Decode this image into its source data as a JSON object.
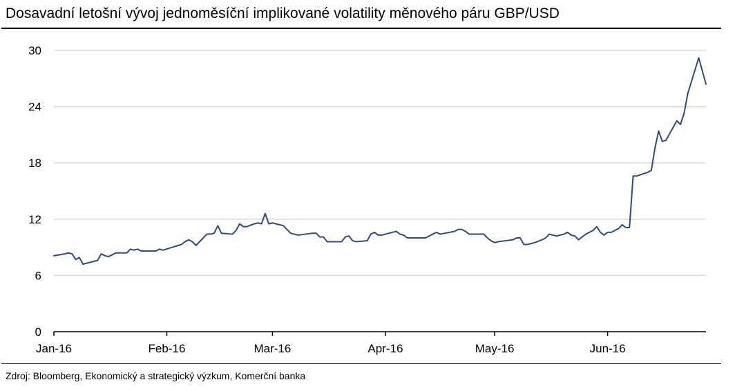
{
  "title": "Dosavadní letošní vývoj jednoměsíční implikované volatility měnového páru GBP/USD",
  "source": "Zdroj: Bloomberg, Ekonomický a strategický výzkum, Komerční banka",
  "colors": {
    "line": "#2e4a7a",
    "grid": "#d9d9d9",
    "axis": "#000000"
  },
  "chart_data": {
    "type": "line",
    "title": "Dosavadní letošní vývoj jednoměsíční implikované volatility měnového páru GBP/USD",
    "xlabel": "",
    "ylabel": "",
    "ylim": [
      0,
      30
    ],
    "xlim": [
      "2016-01-01",
      "2016-06-28"
    ],
    "yticks": [
      0,
      6,
      12,
      18,
      24,
      30
    ],
    "xticks": [
      {
        "label": "Jan-16",
        "date": "2016-01-01"
      },
      {
        "label": "Feb-16",
        "date": "2016-02-01"
      },
      {
        "label": "Mar-16",
        "date": "2016-03-01"
      },
      {
        "label": "Apr-16",
        "date": "2016-04-01"
      },
      {
        "label": "May-16",
        "date": "2016-05-01"
      },
      {
        "label": "Jun-16",
        "date": "2016-06-01"
      }
    ],
    "grid": true,
    "legend": "none",
    "series": [
      {
        "points": [
          [
            "2016-01-01",
            8.1
          ],
          [
            "2016-01-04",
            8.3
          ],
          [
            "2016-01-05",
            8.4
          ],
          [
            "2016-01-06",
            8.3
          ],
          [
            "2016-01-07",
            7.7
          ],
          [
            "2016-01-08",
            7.9
          ],
          [
            "2016-01-09",
            7.2
          ],
          [
            "2016-01-11",
            7.4
          ],
          [
            "2016-01-13",
            7.6
          ],
          [
            "2016-01-14",
            8.3
          ],
          [
            "2016-01-15",
            8.1
          ],
          [
            "2016-01-16",
            8.0
          ],
          [
            "2016-01-18",
            8.4
          ],
          [
            "2016-01-21",
            8.4
          ],
          [
            "2016-01-22",
            8.8
          ],
          [
            "2016-01-23",
            8.7
          ],
          [
            "2016-01-24",
            8.8
          ],
          [
            "2016-01-25",
            8.6
          ],
          [
            "2016-01-29",
            8.6
          ],
          [
            "2016-01-30",
            8.8
          ],
          [
            "2016-01-31",
            8.7
          ],
          [
            "2016-02-05",
            9.3
          ],
          [
            "2016-02-06",
            9.6
          ],
          [
            "2016-02-07",
            9.8
          ],
          [
            "2016-02-08",
            9.6
          ],
          [
            "2016-02-09",
            9.2
          ],
          [
            "2016-02-12",
            10.4
          ],
          [
            "2016-02-13",
            10.4
          ],
          [
            "2016-02-14",
            10.5
          ],
          [
            "2016-02-15",
            11.3
          ],
          [
            "2016-02-16",
            10.5
          ],
          [
            "2016-02-19",
            10.4
          ],
          [
            "2016-02-20",
            10.8
          ],
          [
            "2016-02-21",
            11.5
          ],
          [
            "2016-02-22",
            11.2
          ],
          [
            "2016-02-23",
            11.2
          ],
          [
            "2016-02-25",
            11.5
          ],
          [
            "2016-02-26",
            11.6
          ],
          [
            "2016-02-27",
            11.5
          ],
          [
            "2016-02-28",
            12.6
          ],
          [
            "2016-02-29",
            11.5
          ],
          [
            "2016-03-01",
            11.6
          ],
          [
            "2016-03-04",
            11.3
          ],
          [
            "2016-03-05",
            10.9
          ],
          [
            "2016-03-06",
            10.5
          ],
          [
            "2016-03-08",
            10.3
          ],
          [
            "2016-03-10",
            10.4
          ],
          [
            "2016-03-12",
            10.5
          ],
          [
            "2016-03-13",
            10.5
          ],
          [
            "2016-03-14",
            10.1
          ],
          [
            "2016-03-15",
            10.1
          ],
          [
            "2016-03-16",
            9.6
          ],
          [
            "2016-03-19",
            9.6
          ],
          [
            "2016-03-20",
            9.6
          ],
          [
            "2016-03-21",
            10.1
          ],
          [
            "2016-03-22",
            10.2
          ],
          [
            "2016-03-23",
            9.7
          ],
          [
            "2016-03-24",
            9.6
          ],
          [
            "2016-03-27",
            9.7
          ],
          [
            "2016-03-28",
            10.4
          ],
          [
            "2016-03-29",
            10.6
          ],
          [
            "2016-03-30",
            10.3
          ],
          [
            "2016-03-31",
            10.3
          ],
          [
            "2016-04-03",
            10.6
          ],
          [
            "2016-04-04",
            10.7
          ],
          [
            "2016-04-05",
            10.4
          ],
          [
            "2016-04-06",
            10.3
          ],
          [
            "2016-04-07",
            10.0
          ],
          [
            "2016-04-12",
            10.0
          ],
          [
            "2016-04-14",
            10.4
          ],
          [
            "2016-04-15",
            10.6
          ],
          [
            "2016-04-16",
            10.4
          ],
          [
            "2016-04-20",
            10.7
          ],
          [
            "2016-04-21",
            10.9
          ],
          [
            "2016-04-22",
            10.9
          ],
          [
            "2016-04-23",
            10.7
          ],
          [
            "2016-04-24",
            10.4
          ],
          [
            "2016-04-28",
            10.4
          ],
          [
            "2016-04-29",
            10.0
          ],
          [
            "2016-04-30",
            9.7
          ],
          [
            "2016-05-01",
            9.5
          ],
          [
            "2016-05-02",
            9.6
          ],
          [
            "2016-05-06",
            9.8
          ],
          [
            "2016-05-07",
            10.0
          ],
          [
            "2016-05-08",
            10.0
          ],
          [
            "2016-05-09",
            9.3
          ],
          [
            "2016-05-10",
            9.3
          ],
          [
            "2016-05-12",
            9.5
          ],
          [
            "2016-05-14",
            9.8
          ],
          [
            "2016-05-15",
            10.0
          ],
          [
            "2016-05-16",
            10.4
          ],
          [
            "2016-05-17",
            10.3
          ],
          [
            "2016-05-18",
            10.2
          ],
          [
            "2016-05-20",
            10.4
          ],
          [
            "2016-05-21",
            10.6
          ],
          [
            "2016-05-22",
            10.3
          ],
          [
            "2016-05-23",
            10.2
          ],
          [
            "2016-05-24",
            9.8
          ],
          [
            "2016-05-26",
            10.4
          ],
          [
            "2016-05-28",
            10.8
          ],
          [
            "2016-05-29",
            11.2
          ],
          [
            "2016-05-30",
            10.6
          ],
          [
            "2016-05-31",
            10.3
          ],
          [
            "2016-06-01",
            10.6
          ],
          [
            "2016-06-02",
            10.6
          ],
          [
            "2016-06-04",
            11.0
          ],
          [
            "2016-06-05",
            11.4
          ],
          [
            "2016-06-06",
            11.1
          ],
          [
            "2016-06-07",
            11.1
          ],
          [
            "2016-06-08",
            16.6
          ],
          [
            "2016-06-09",
            16.6
          ],
          [
            "2016-06-12",
            17.0
          ],
          [
            "2016-06-13",
            17.2
          ],
          [
            "2016-06-14",
            19.6
          ],
          [
            "2016-06-15",
            21.4
          ],
          [
            "2016-06-16",
            20.3
          ],
          [
            "2016-06-17",
            20.4
          ],
          [
            "2016-06-20",
            22.5
          ],
          [
            "2016-06-21",
            22.1
          ],
          [
            "2016-06-22",
            23.3
          ],
          [
            "2016-06-23",
            25.4
          ],
          [
            "2016-06-26",
            29.2
          ],
          [
            "2016-06-28",
            26.4
          ]
        ]
      }
    ]
  }
}
